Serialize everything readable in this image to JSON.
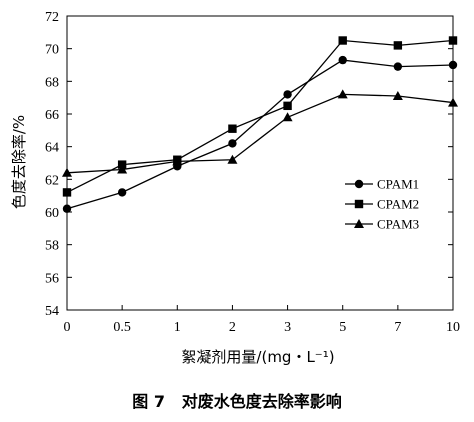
{
  "chart_data": {
    "type": "line",
    "categories": [
      "0",
      "0.5",
      "1",
      "2",
      "3",
      "5",
      "7",
      "10"
    ],
    "xlabel": "絮凝剂用量/(mg・L⁻¹)",
    "ylabel": "色度去除率/%",
    "ylim": [
      54,
      72
    ],
    "yticks": [
      54,
      56,
      58,
      60,
      62,
      64,
      66,
      68,
      70,
      72
    ],
    "grid": false,
    "legend_position": "right",
    "series": [
      {
        "name": "CPAM1",
        "marker": "circle",
        "values": [
          60.2,
          61.2,
          62.8,
          64.2,
          67.2,
          69.3,
          68.9,
          69.0
        ]
      },
      {
        "name": "CPAM2",
        "marker": "square",
        "values": [
          61.2,
          62.9,
          63.2,
          65.1,
          66.5,
          70.5,
          70.2,
          70.5
        ]
      },
      {
        "name": "CPAM3",
        "marker": "triangle",
        "values": [
          62.4,
          62.6,
          63.1,
          63.2,
          65.8,
          67.2,
          67.1,
          66.7
        ]
      }
    ]
  },
  "caption": {
    "figure_number": "图 7",
    "title": "对废水色度去除率影响"
  }
}
